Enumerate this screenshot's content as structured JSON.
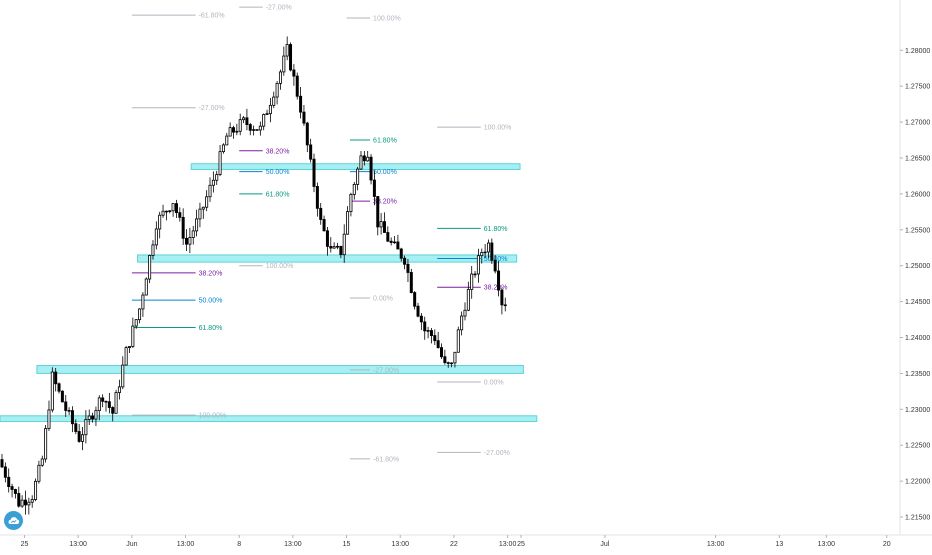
{
  "chart_data": {
    "type": "candlestick",
    "title": "",
    "xlabel": "",
    "ylabel": "",
    "ylim": [
      1.2125,
      1.287
    ],
    "grid": false,
    "price_axis_side": "right",
    "y_ticks": [
      "1.28000",
      "1.27500",
      "1.27000",
      "1.26500",
      "1.26000",
      "1.25500",
      "1.25000",
      "1.24500",
      "1.24000",
      "1.23500",
      "1.23000",
      "1.22500",
      "1.22000",
      "1.21500"
    ],
    "x_ticks": [
      {
        "label": "25",
        "slot": 7
      },
      {
        "label": "13:00",
        "slot": 23
      },
      {
        "label": "Jun",
        "slot": 39
      },
      {
        "label": "13:00",
        "slot": 55
      },
      {
        "label": "8",
        "slot": 71
      },
      {
        "label": "13:00",
        "slot": 87
      },
      {
        "label": "15",
        "slot": 103
      },
      {
        "label": "13:00",
        "slot": 119
      },
      {
        "label": "22",
        "slot": 135
      },
      {
        "label": "13:00",
        "slot": 151
      },
      {
        "label": "25",
        "slot": 155
      },
      {
        "label": "Jul",
        "slot": 180
      },
      {
        "label": "13:00",
        "slot": 213
      },
      {
        "label": "13",
        "slot": 232
      },
      {
        "label": "13:00",
        "slot": 246
      },
      {
        "label": "20",
        "slot": 264
      }
    ],
    "candle_path": [
      [
        0,
        1.223
      ],
      [
        6,
        1.217
      ],
      [
        10,
        1.218
      ],
      [
        13,
        1.223
      ],
      [
        16,
        1.2345
      ],
      [
        20,
        1.23
      ],
      [
        24,
        1.226
      ],
      [
        28,
        1.2295
      ],
      [
        31,
        1.232
      ],
      [
        34,
        1.2295
      ],
      [
        38,
        1.238
      ],
      [
        42,
        1.244
      ],
      [
        47,
        1.256
      ],
      [
        52,
        1.259
      ],
      [
        56,
        1.253
      ],
      [
        60,
        1.257
      ],
      [
        64,
        1.262
      ],
      [
        68,
        1.268
      ],
      [
        73,
        1.27
      ],
      [
        78,
        1.269
      ],
      [
        84,
        1.277
      ],
      [
        86,
        1.28
      ],
      [
        90,
        1.272
      ],
      [
        93,
        1.264
      ],
      [
        96,
        1.256
      ],
      [
        99,
        1.252
      ],
      [
        102,
        1.252
      ],
      [
        105,
        1.26
      ],
      [
        108,
        1.265
      ],
      [
        110,
        1.266
      ],
      [
        113,
        1.256
      ],
      [
        117,
        1.253
      ],
      [
        121,
        1.251
      ],
      [
        124,
        1.245
      ],
      [
        127,
        1.241
      ],
      [
        130,
        1.24
      ],
      [
        133,
        1.236
      ],
      [
        135,
        1.236
      ],
      [
        138,
        1.243
      ],
      [
        141,
        1.248
      ],
      [
        144,
        1.252
      ],
      [
        146,
        1.253
      ],
      [
        148,
        1.25
      ],
      [
        150,
        1.245
      ]
    ],
    "fib_levels": [
      {
        "label": "-61.80%",
        "price": 1.2849,
        "from_slot": 39,
        "to_slot": 58,
        "color": "#b2b5be"
      },
      {
        "label": "-27.00%",
        "price": 1.286,
        "from_slot": 71,
        "to_slot": 78,
        "color": "#b2b5be"
      },
      {
        "label": "100.00%",
        "price": 1.2845,
        "from_slot": 103,
        "to_slot": 110,
        "color": "#b2b5be"
      },
      {
        "label": "-27.00%",
        "price": 1.272,
        "from_slot": 39,
        "to_slot": 58,
        "color": "#b2b5be"
      },
      {
        "label": "100.00%",
        "price": 1.2693,
        "from_slot": 130,
        "to_slot": 143,
        "color": "#b2b5be"
      },
      {
        "label": "61.80%",
        "price": 1.2675,
        "from_slot": 104,
        "to_slot": 110,
        "color": "#089981"
      },
      {
        "label": "38.20%",
        "price": 1.266,
        "from_slot": 71,
        "to_slot": 78,
        "color": "#7b1fa2"
      },
      {
        "label": "50.00%",
        "price": 1.2631,
        "from_slot": 71,
        "to_slot": 78,
        "color": "#0288d1"
      },
      {
        "label": "50.00%",
        "price": 1.2631,
        "from_slot": 104,
        "to_slot": 110,
        "color": "#0288d1"
      },
      {
        "label": "61.80%",
        "price": 1.26,
        "from_slot": 71,
        "to_slot": 78,
        "color": "#089981"
      },
      {
        "label": "38.20%",
        "price": 1.259,
        "from_slot": 104,
        "to_slot": 110,
        "color": "#7b1fa2"
      },
      {
        "label": "61.80%",
        "price": 1.2552,
        "from_slot": 130,
        "to_slot": 143,
        "color": "#089981"
      },
      {
        "label": "50.00%",
        "price": 1.251,
        "from_slot": 130,
        "to_slot": 143,
        "color": "#0288d1"
      },
      {
        "label": "100.00%",
        "price": 1.25,
        "from_slot": 71,
        "to_slot": 78,
        "color": "#b2b5be"
      },
      {
        "label": "38.20%",
        "price": 1.249,
        "from_slot": 39,
        "to_slot": 58,
        "color": "#7b1fa2"
      },
      {
        "label": "38.20%",
        "price": 1.247,
        "from_slot": 130,
        "to_slot": 143,
        "color": "#7b1fa2"
      },
      {
        "label": "50.00%",
        "price": 1.2452,
        "from_slot": 39,
        "to_slot": 58,
        "color": "#0288d1"
      },
      {
        "label": "0.00%",
        "price": 1.2455,
        "from_slot": 104,
        "to_slot": 110,
        "color": "#b2b5be"
      },
      {
        "label": "61.80%",
        "price": 1.2414,
        "from_slot": 39,
        "to_slot": 58,
        "color": "#089981"
      },
      {
        "label": "-27.00%",
        "price": 1.2355,
        "from_slot": 104,
        "to_slot": 110,
        "color": "#b2b5be"
      },
      {
        "label": "0.00%",
        "price": 1.2338,
        "from_slot": 130,
        "to_slot": 143,
        "color": "#b2b5be"
      },
      {
        "label": "100.00%",
        "price": 1.2292,
        "from_slot": 39,
        "to_slot": 58,
        "color": "#b2b5be"
      },
      {
        "label": "-27.00%",
        "price": 1.224,
        "from_slot": 130,
        "to_slot": 143,
        "color": "#b2b5be"
      },
      {
        "label": "-61.80%",
        "price": 1.2231,
        "from_slot": 104,
        "to_slot": 110,
        "color": "#b2b5be"
      }
    ],
    "zones": [
      {
        "top": 1.2642,
        "bottom": 1.2634,
        "from_slot": 57,
        "to_slot": 155
      },
      {
        "top": 1.2515,
        "bottom": 1.2505,
        "from_slot": 41,
        "to_slot": 154
      },
      {
        "top": 1.2361,
        "bottom": 1.235,
        "from_slot": 11,
        "to_slot": 156
      },
      {
        "top": 1.2291,
        "bottom": 1.2283,
        "from_slot": 0,
        "to_slot": 160
      }
    ],
    "colors": {
      "candle_up": "#ffffff",
      "candle_down": "#000000",
      "zone_fill": "#80e8ec",
      "axis_text": "#333333"
    }
  },
  "branding": {
    "logo_icon": "tradingview-cloud-icon",
    "logo_color": "#3a9fd6"
  }
}
